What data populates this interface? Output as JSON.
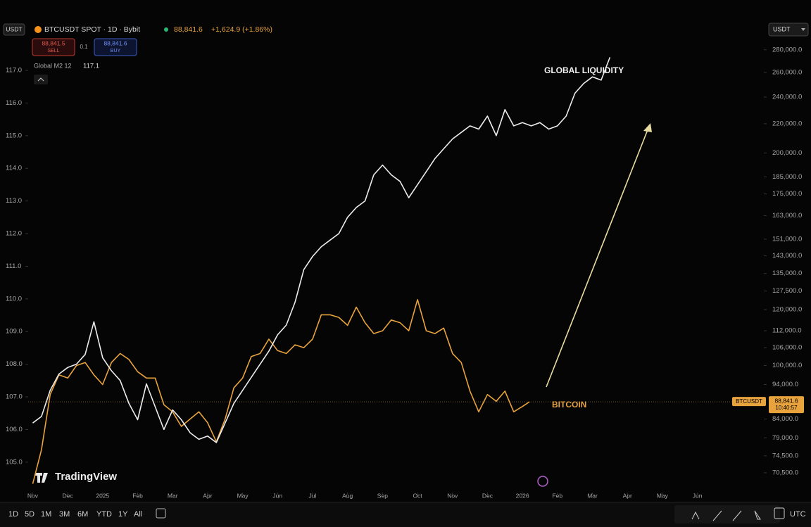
{
  "header": {
    "symbol_badge": "USDT",
    "title": "BTCUSDT SPOT · 1D · Bybit",
    "price": "88,841.6",
    "change": "+1,624.9 (+1.86%)",
    "sell_price": "88,841.5",
    "sell": "SELL",
    "spread": "0.1",
    "buy_price": "88,841.6",
    "buy": "BUY",
    "indicator_value": 117.1,
    "currency": "USDT"
  },
  "chart_data": {
    "type": "line",
    "xlim": [
      -0.13,
      20.9
    ],
    "xticks": [
      {
        "value": 0,
        "label": "Nov"
      },
      {
        "value": 1,
        "label": "Dec"
      },
      {
        "value": 2,
        "label": "2025"
      },
      {
        "value": 3,
        "label": "Feb"
      },
      {
        "value": 4,
        "label": "Mar"
      },
      {
        "value": 5,
        "label": "Apr"
      },
      {
        "value": 6,
        "label": "May"
      },
      {
        "value": 7,
        "label": "Jun"
      },
      {
        "value": 8,
        "label": "Jul"
      },
      {
        "value": 9,
        "label": "Aug"
      },
      {
        "value": 10,
        "label": "Sep"
      },
      {
        "value": 11,
        "label": "Oct"
      },
      {
        "value": 12,
        "label": "Nov"
      },
      {
        "value": 13,
        "label": "Dec"
      },
      {
        "value": 14,
        "label": "2026"
      },
      {
        "value": 15,
        "label": "Feb"
      },
      {
        "value": 16,
        "label": "Mar"
      },
      {
        "value": 17,
        "label": "Apr"
      },
      {
        "value": 18,
        "label": "May"
      },
      {
        "value": 19,
        "label": "Jun"
      }
    ],
    "ylim": [
      104.07,
      117.97
    ],
    "yticks": [
      {
        "value": 105,
        "label": "105.0"
      },
      {
        "value": 106,
        "label": "106.0"
      },
      {
        "value": 107,
        "label": "107.0"
      },
      {
        "value": 108,
        "label": "108.0"
      },
      {
        "value": 109,
        "label": "109.0"
      },
      {
        "value": 110,
        "label": "110.0"
      },
      {
        "value": 111,
        "label": "111.0"
      },
      {
        "value": 112,
        "label": "112.0"
      },
      {
        "value": 113,
        "label": "113.0"
      },
      {
        "value": 114,
        "label": "114.0"
      },
      {
        "value": 115,
        "label": "115.0"
      },
      {
        "value": 116,
        "label": "116.0"
      },
      {
        "value": 117,
        "label": "117.0"
      }
    ],
    "y2lim": [
      66100,
      290300
    ],
    "y2_log": true,
    "y2ticks": [
      {
        "value": 280000,
        "label": "280,000.0"
      },
      {
        "value": 260000,
        "label": "260,000.0"
      },
      {
        "value": 240000,
        "label": "240,000.0"
      },
      {
        "value": 220000,
        "label": "220,000.0"
      },
      {
        "value": 200000,
        "label": "200,000.0"
      },
      {
        "value": 185000,
        "label": "185,000.0"
      },
      {
        "value": 175000,
        "label": "175,000.0"
      },
      {
        "value": 163000,
        "label": "163,000.0"
      },
      {
        "value": 151000,
        "label": "151,000.0"
      },
      {
        "value": 143000,
        "label": "143,000.0"
      },
      {
        "value": 135000,
        "label": "135,000.0"
      },
      {
        "value": 127500,
        "label": "127,500.0"
      },
      {
        "value": 120000,
        "label": "120,000.0"
      },
      {
        "value": 112000,
        "label": "112,000.0"
      },
      {
        "value": 106000,
        "label": "106,000.0"
      },
      {
        "value": 100000,
        "label": "100,000.0"
      },
      {
        "value": 94000,
        "label": "94,000.0"
      },
      {
        "value": 84000,
        "label": "84,000.0"
      },
      {
        "value": 79000,
        "label": "79,000.0"
      },
      {
        "value": 74500,
        "label": "74,500.0"
      },
      {
        "value": 70500,
        "label": "70,500.0"
      }
    ],
    "series": [
      {
        "name": "Global M2 12",
        "axis": "y",
        "color": "#ececec",
        "x": [
          0,
          0.25,
          0.5,
          0.75,
          1,
          1.25,
          1.5,
          1.75,
          2,
          2.25,
          2.5,
          2.75,
          3,
          3.25,
          3.5,
          3.75,
          4,
          4.25,
          4.5,
          4.75,
          5,
          5.25,
          5.5,
          5.75,
          6,
          6.25,
          6.5,
          6.75,
          7,
          7.25,
          7.5,
          7.75,
          8,
          8.25,
          8.5,
          8.75,
          9,
          9.25,
          9.5,
          9.75,
          10,
          10.25,
          10.5,
          10.75,
          11,
          11.25,
          11.5,
          11.75,
          12,
          12.25,
          12.5,
          12.75,
          13,
          13.25,
          13.5,
          13.75,
          14,
          14.25,
          14.5,
          14.75,
          15,
          15.25,
          15.5,
          15.75,
          16,
          16.25,
          16.5
        ],
        "values": [
          106.2,
          106.4,
          107.2,
          107.7,
          107.9,
          108.0,
          108.3,
          109.3,
          108.2,
          107.8,
          107.5,
          106.8,
          106.3,
          107.4,
          106.7,
          106.0,
          106.6,
          106.3,
          105.9,
          105.7,
          105.8,
          105.6,
          106.2,
          106.8,
          107.2,
          107.6,
          108.0,
          108.4,
          108.9,
          109.2,
          109.9,
          110.9,
          111.3,
          111.6,
          111.8,
          112.0,
          112.5,
          112.8,
          113.0,
          113.8,
          114.1,
          113.8,
          113.6,
          113.1,
          113.5,
          113.9,
          114.3,
          114.6,
          114.9,
          115.1,
          115.3,
          115.2,
          115.6,
          115.0,
          115.8,
          115.3,
          115.4,
          115.3,
          115.4,
          115.2,
          115.3,
          115.6,
          116.3,
          116.6,
          116.8,
          116.7,
          117.4
        ]
      },
      {
        "name": "BTCUSDT",
        "axis": "y2",
        "color": "#e8a33d",
        "x": [
          0,
          0.25,
          0.5,
          0.75,
          1,
          1.25,
          1.5,
          1.75,
          2,
          2.25,
          2.5,
          2.75,
          3,
          3.25,
          3.5,
          3.75,
          4,
          4.25,
          4.5,
          4.75,
          5,
          5.25,
          5.5,
          5.75,
          6,
          6.25,
          6.5,
          6.75,
          7,
          7.25,
          7.5,
          7.75,
          8,
          8.25,
          8.5,
          8.75,
          9,
          9.25,
          9.5,
          9.75,
          10,
          10.25,
          10.5,
          10.75,
          11,
          11.25,
          11.5,
          11.75,
          12,
          12.25,
          12.5,
          12.75,
          13,
          13.25,
          13.5,
          13.75,
          14,
          14.2
        ],
        "values": [
          68000,
          76000,
          91000,
          97000,
          96000,
          100000,
          101000,
          97000,
          94000,
          101000,
          104000,
          102000,
          98000,
          96000,
          96000,
          88000,
          86000,
          82000,
          84000,
          86000,
          83000,
          78000,
          84000,
          93000,
          96000,
          103000,
          104000,
          109000,
          105000,
          104000,
          107000,
          106000,
          109000,
          118000,
          118000,
          117000,
          114000,
          121000,
          115000,
          111000,
          112000,
          116000,
          115000,
          112000,
          124000,
          112000,
          111000,
          113000,
          104000,
          101000,
          92000,
          86000,
          91000,
          89000,
          92000,
          86000,
          87500,
          88841.6
        ]
      }
    ],
    "last_price": {
      "value": 88841.6,
      "label": "88,841.6",
      "time": "10:40:57"
    },
    "annotations": [
      "GLOBAL LIQUIDITY",
      "BITCOIN"
    ]
  },
  "toolbar": {
    "ranges": [
      "1D",
      "5D",
      "1M",
      "3M",
      "6M",
      "YTD",
      "1Y",
      "All"
    ],
    "timezone": "UTC"
  },
  "watermark": "TradingView"
}
